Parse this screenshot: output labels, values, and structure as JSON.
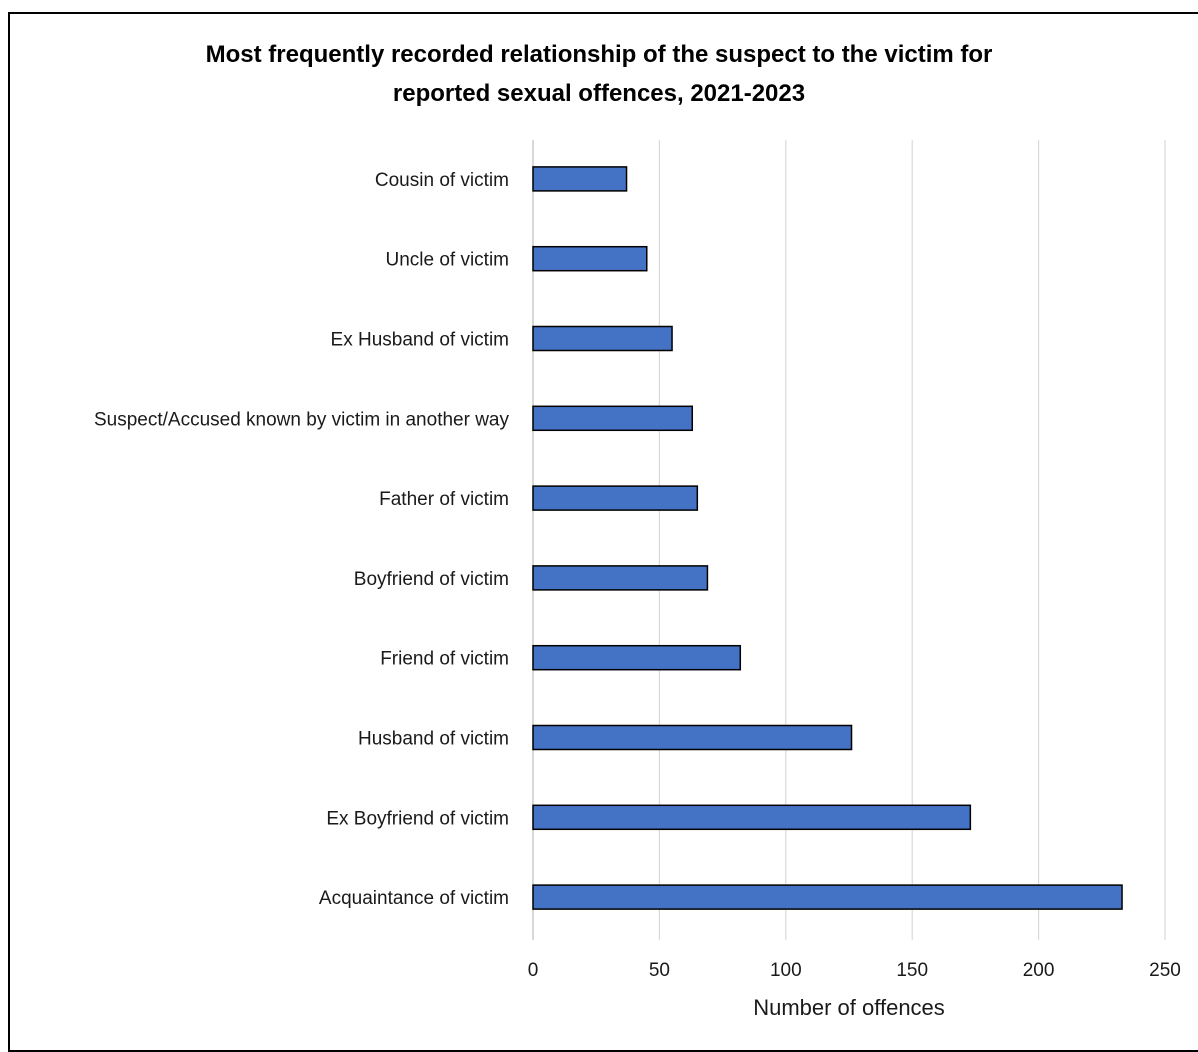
{
  "chart_data": {
    "type": "bar",
    "orientation": "horizontal",
    "title": "Most frequently recorded relationship of the suspect to the victim for reported sexual offences, 2021-2023",
    "title_lines": [
      "Most frequently recorded relationship of the suspect to the victim for",
      "reported sexual offences, 2021-2023"
    ],
    "xlabel": "Number of offences",
    "ylabel": "",
    "categories": [
      "Cousin of victim",
      "Uncle of victim",
      "Ex Husband of victim",
      "Suspect/Accused known by victim in another way",
      "Father of victim",
      "Boyfriend of victim",
      "Friend of victim",
      "Husband of victim",
      "Ex Boyfriend of victim",
      "Acquaintance of victim"
    ],
    "values": [
      37,
      45,
      55,
      63,
      65,
      69,
      82,
      126,
      173,
      233
    ],
    "xlim": [
      0,
      250
    ],
    "xticks": [
      0,
      50,
      100,
      150,
      200,
      250
    ],
    "grid": "vertical",
    "legend": "none",
    "colors": {
      "bar": "#4472C4",
      "bar_outline": "#000000",
      "grid": "#D9D9D9"
    }
  }
}
